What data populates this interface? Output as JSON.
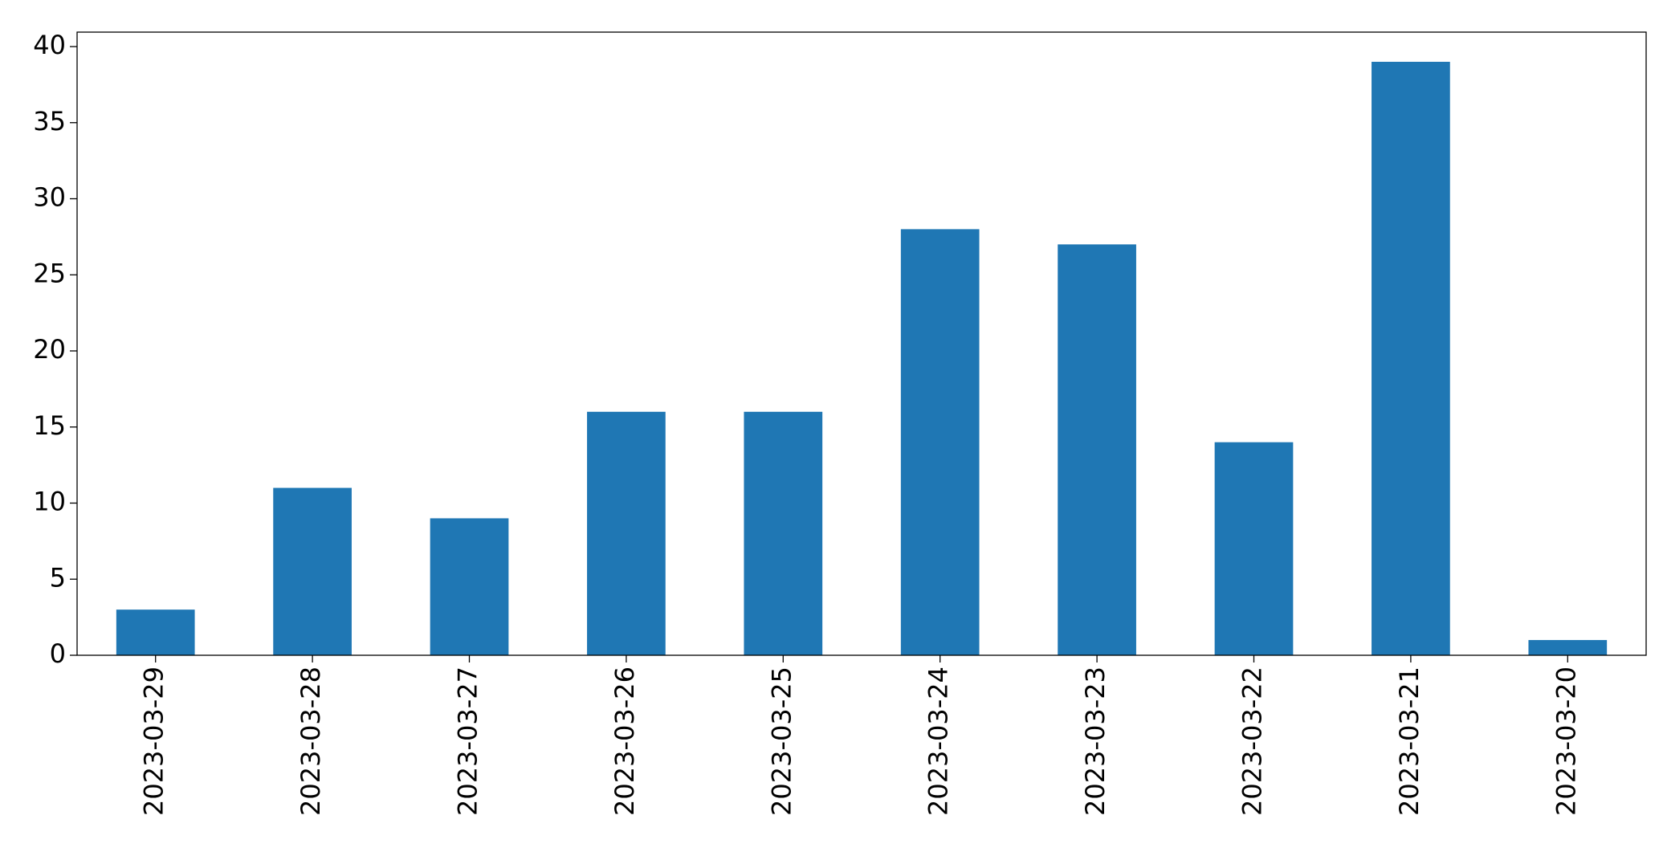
{
  "chart_data": {
    "type": "bar",
    "categories": [
      "2023-03-29",
      "2023-03-28",
      "2023-03-27",
      "2023-03-26",
      "2023-03-25",
      "2023-03-24",
      "2023-03-23",
      "2023-03-22",
      "2023-03-21",
      "2023-03-20"
    ],
    "values": [
      3,
      11,
      9,
      16,
      16,
      28,
      27,
      14,
      39,
      1
    ],
    "color": "#1f77b4",
    "ylim": [
      0,
      40.95
    ],
    "yticks": [
      0,
      5,
      10,
      15,
      20,
      25,
      30,
      35,
      40
    ],
    "grid": false
  }
}
